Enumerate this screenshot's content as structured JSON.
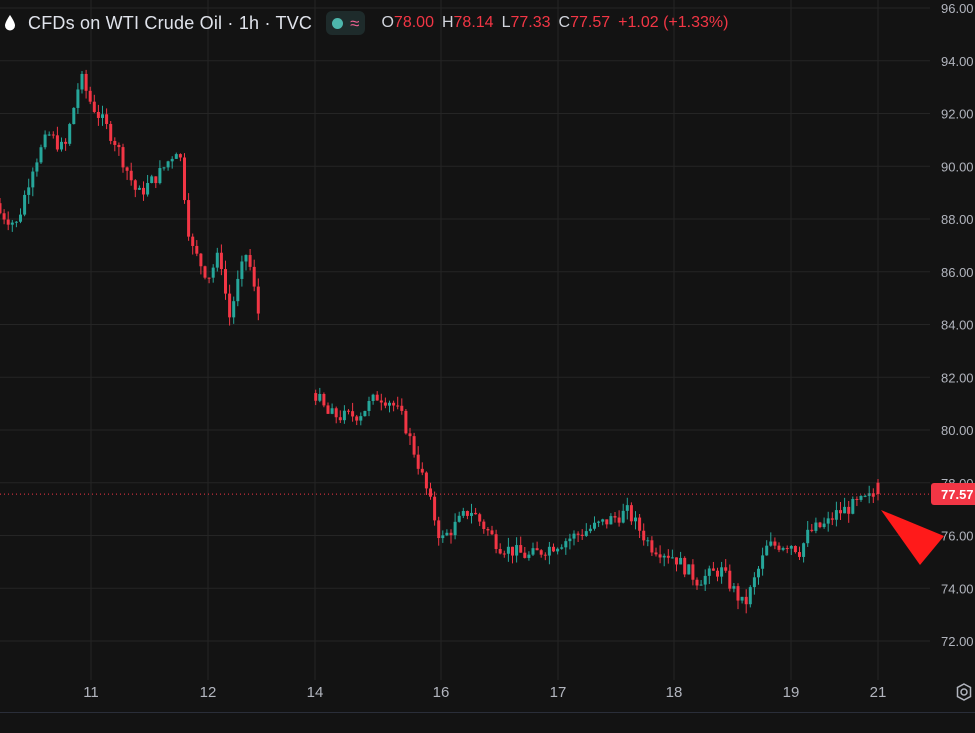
{
  "header": {
    "symbol_title": "CFDs on WTI Crude Oil · 1h · TVC",
    "icons": [
      "drop-icon",
      "status-dot-icon",
      "wave-icon"
    ],
    "ohlc": {
      "open_label": "O",
      "open_value": "78.00",
      "high_label": "H",
      "high_value": "78.14",
      "low_label": "L",
      "low_value": "77.33",
      "close_label": "C",
      "close_value": "77.57",
      "change": "+1.02 (+1.33%)"
    }
  },
  "colors": {
    "up": "#26a69a",
    "down": "#f23645",
    "background": "#131313",
    "grid": "#252525"
  },
  "price_scale": {
    "current_price_label": "77.57"
  },
  "bottom_toolbar": {
    "ranges_text": "",
    "clock_text": ""
  },
  "chart_data": {
    "type": "candlestick",
    "title": "CFDs on WTI Crude Oil · 1h · TVC",
    "y_ticks": [
      "72.00",
      "74.00",
      "76.00",
      "78.00",
      "80.00",
      "82.00",
      "84.00",
      "86.00",
      "88.00",
      "90.00",
      "92.00",
      "94.00",
      "96.00"
    ],
    "ylim": [
      71.5,
      96.0
    ],
    "x_ticks": [
      "11",
      "12",
      "14",
      "16",
      "17",
      "18",
      "19",
      "21"
    ],
    "current_price": 77.57,
    "grid": true,
    "annotation": "red-down-arrow",
    "price_path": [
      [
        "10.0",
        88.6
      ],
      [
        "10.3",
        87.8
      ],
      [
        "10.45",
        90.0
      ],
      [
        "10.6",
        91.2
      ],
      [
        "10.75",
        90.6
      ],
      [
        "10.9",
        93.4
      ],
      [
        "11.0",
        92.4
      ],
      [
        "11.2",
        91.0
      ],
      [
        "11.4",
        88.9
      ],
      [
        "11.6",
        89.8
      ],
      [
        "11.75",
        90.8
      ],
      [
        "11.85",
        87.0
      ],
      [
        "12.0",
        85.8
      ],
      [
        "12.2",
        86.7
      ],
      [
        "12.35",
        84.2
      ],
      [
        "12.5",
        85.6
      ],
      [
        "12.65",
        86.8
      ],
      [
        "12.85",
        84.3
      ],
      [
        "14.0",
        81.4
      ],
      [
        "14.2",
        80.6
      ],
      [
        "14.45",
        80.5
      ],
      [
        "14.7",
        80.6
      ],
      [
        "15.0",
        81.3
      ],
      [
        "15.2",
        81.1
      ],
      [
        "15.4",
        80.4
      ],
      [
        "15.6",
        79.0
      ],
      [
        "15.8",
        77.5
      ],
      [
        "16.0",
        75.8
      ],
      [
        "16.25",
        77.0
      ],
      [
        "16.5",
        75.6
      ],
      [
        "16.75",
        75.2
      ],
      [
        "17.0",
        75.7
      ],
      [
        "17.2",
        76.1
      ],
      [
        "17.6",
        76.9
      ],
      [
        "17.8",
        75.6
      ],
      [
        "18.0",
        75.2
      ],
      [
        "18.2",
        74.3
      ],
      [
        "18.4",
        74.7
      ],
      [
        "18.6",
        73.3
      ],
      [
        "18.8",
        75.6
      ],
      [
        "19.0",
        75.7
      ],
      [
        "19.2",
        75.4
      ],
      [
        "19.4",
        76.1
      ],
      [
        "19.6",
        76.3
      ],
      [
        "19.8",
        76.4
      ],
      [
        "20.0",
        76.8
      ],
      [
        "21.0",
        77.57
      ]
    ]
  }
}
